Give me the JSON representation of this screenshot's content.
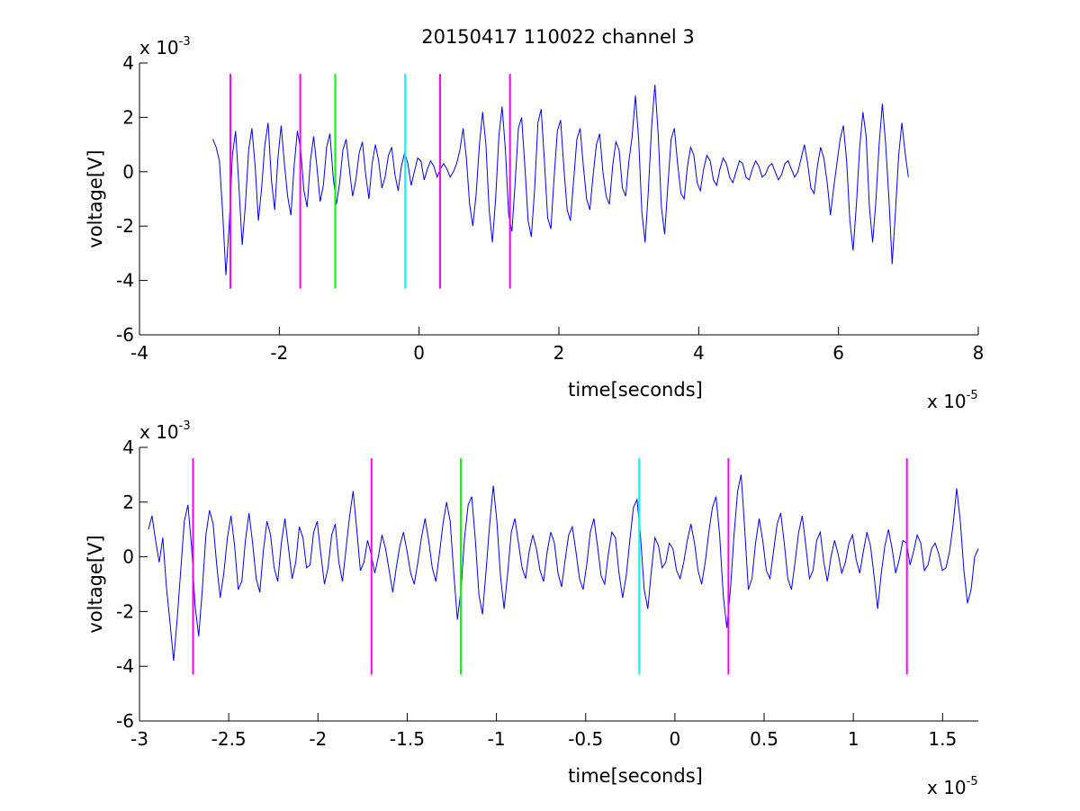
{
  "figure": {
    "title": "20150417 110022 channel 3"
  },
  "chart_data": [
    {
      "type": "line",
      "title": "20150417 110022 channel 3",
      "xlabel": "time[seconds]",
      "ylabel": "voltage[V]",
      "x_exponent_label": "x 10",
      "x_exponent_power": "-5",
      "y_exponent_label": "x 10",
      "y_exponent_power": "-3",
      "xlim": [
        -4,
        8
      ],
      "ylim": [
        -6,
        4
      ],
      "x_ticks": [
        -4,
        -2,
        0,
        2,
        4,
        6,
        8
      ],
      "x_tick_labels": [
        "-4",
        "-2",
        "0",
        "2",
        "4",
        "6",
        "8"
      ],
      "y_ticks": [
        -6,
        -4,
        -2,
        0,
        2,
        4
      ],
      "y_tick_labels": [
        "-6",
        "-4",
        "-2",
        "0",
        "2",
        "4"
      ],
      "grid": false,
      "signal": {
        "color": "#0000ff",
        "x_range": [
          -2.95,
          7.0
        ],
        "samples": [
          1.2,
          0.9,
          0.4,
          -1.5,
          -3.8,
          -2.0,
          0.6,
          1.5,
          -0.5,
          -2.7,
          -1.2,
          0.8,
          1.6,
          0.2,
          -1.8,
          -0.6,
          1.0,
          1.8,
          -0.3,
          -1.4,
          0.5,
          1.7,
          0.3,
          -0.9,
          -1.6,
          0.2,
          1.5,
          0.8,
          -0.7,
          -1.3,
          0.4,
          1.3,
          0.2,
          -1.1,
          -0.5,
          0.9,
          1.4,
          -0.2,
          -1.2,
          -0.4,
          0.8,
          1.2,
          0.1,
          -0.9,
          -0.3,
          0.7,
          1.1,
          -0.1,
          -1.0,
          0.3,
          1.0,
          0.4,
          -0.6,
          -0.2,
          0.6,
          0.9,
          -0.1,
          -0.7,
          0.2,
          0.7,
          0.3,
          -0.5,
          0.0,
          0.5,
          0.4,
          -0.3,
          0.1,
          0.4,
          0.2,
          -0.2,
          0.1,
          0.3,
          0.1,
          -0.2,
          0.0,
          0.3,
          0.8,
          1.6,
          0.5,
          -1.2,
          -2.0,
          -0.8,
          1.0,
          2.2,
          1.0,
          -1.4,
          -2.6,
          -1.0,
          1.3,
          2.4,
          0.8,
          -1.6,
          -2.2,
          -0.4,
          1.6,
          2.0,
          0.2,
          -1.8,
          -2.4,
          -0.6,
          1.8,
          2.3,
          0.4,
          -1.7,
          -2.1,
          -0.2,
          1.5,
          1.9,
          0.1,
          -1.4,
          -1.8,
          -0.3,
          1.2,
          1.6,
          0.2,
          -1.0,
          -1.4,
          -0.1,
          1.0,
          1.4,
          0.0,
          -0.9,
          -1.2,
          0.2,
          1.1,
          0.8,
          -0.6,
          -0.9,
          0.4,
          1.3,
          2.8,
          1.2,
          -1.5,
          -2.6,
          -0.7,
          1.7,
          3.2,
          1.4,
          -1.3,
          -2.3,
          -0.5,
          1.2,
          1.6,
          0.3,
          -0.8,
          -1.0,
          0.2,
          0.9,
          0.6,
          -0.4,
          -0.7,
          0.1,
          0.6,
          0.4,
          -0.3,
          -0.5,
          0.1,
          0.5,
          0.3,
          -0.2,
          -0.4,
          0.0,
          0.4,
          0.3,
          -0.2,
          -0.3,
          0.1,
          0.4,
          0.2,
          -0.2,
          -0.1,
          0.2,
          0.3,
          0.0,
          -0.3,
          -0.1,
          0.3,
          0.4,
          0.1,
          -0.2,
          0.0,
          0.5,
          1.0,
          0.3,
          -0.6,
          -0.8,
          0.2,
          0.9,
          0.5,
          -0.4,
          -1.6,
          -0.6,
          0.3,
          1.2,
          1.7,
          0.4,
          -1.8,
          -2.9,
          -1.2,
          0.9,
          2.2,
          1.3,
          -1.3,
          -2.6,
          -1.1,
          1.0,
          2.5,
          1.0,
          -1.0,
          -3.4,
          -1.5,
          0.6,
          1.8,
          0.7,
          -0.2
        ]
      },
      "event_markers": [
        {
          "x": -2.7,
          "color": "#ff00ff"
        },
        {
          "x": -1.7,
          "color": "#ff00ff"
        },
        {
          "x": -1.2,
          "color": "#00ff00"
        },
        {
          "x": -0.2,
          "color": "#00ffff"
        },
        {
          "x": 0.3,
          "color": "#ff00ff"
        },
        {
          "x": 1.3,
          "color": "#ff00ff"
        }
      ],
      "marker_y_range": [
        -4.3,
        3.6
      ]
    },
    {
      "type": "line",
      "xlabel": "time[seconds]",
      "ylabel": "voltage[V]",
      "x_exponent_label": "x 10",
      "x_exponent_power": "-5",
      "y_exponent_label": "x 10",
      "y_exponent_power": "-3",
      "xlim": [
        -3,
        1.7
      ],
      "ylim": [
        -6,
        4
      ],
      "x_ticks": [
        -3,
        -2.5,
        -2,
        -1.5,
        -1,
        -0.5,
        0,
        0.5,
        1,
        1.5
      ],
      "x_tick_labels": [
        "-3",
        "-2.5",
        "-2",
        "-1.5",
        "-1",
        "-0.5",
        "0",
        "0.5",
        "1",
        "1.5"
      ],
      "y_ticks": [
        -6,
        -4,
        -2,
        0,
        2,
        4
      ],
      "y_tick_labels": [
        "-6",
        "-4",
        "-2",
        "0",
        "2",
        "4"
      ],
      "grid": false,
      "signal": {
        "color": "#0000ff",
        "x_range": [
          -2.95,
          1.7
        ],
        "samples": [
          1.0,
          1.5,
          0.6,
          -0.2,
          0.7,
          -1.1,
          -2.4,
          -3.8,
          -2.3,
          -0.5,
          1.3,
          1.9,
          0.4,
          -1.8,
          -2.9,
          -1.2,
          0.8,
          1.7,
          1.2,
          -0.3,
          -1.5,
          -0.6,
          0.7,
          1.5,
          0.4,
          -1.2,
          -0.9,
          0.6,
          1.6,
          0.5,
          -0.8,
          -1.3,
          0.2,
          1.3,
          0.8,
          -0.4,
          -0.9,
          0.5,
          1.4,
          0.3,
          -0.8,
          -0.2,
          1.1,
          0.7,
          -0.4,
          -0.3,
          0.9,
          1.3,
          0.1,
          -1.0,
          -0.4,
          0.8,
          1.2,
          -0.2,
          -0.9,
          0.3,
          1.5,
          2.4,
          1.0,
          -0.5,
          -0.2,
          0.6,
          0.1,
          -0.6,
          0.0,
          0.8,
          0.3,
          -0.5,
          -1.3,
          -0.4,
          0.4,
          0.9,
          0.2,
          -0.6,
          -1.0,
          -0.2,
          0.7,
          1.4,
          0.6,
          -0.4,
          -0.9,
          0.1,
          1.2,
          2.0,
          1.3,
          -0.6,
          -2.3,
          -1.2,
          0.7,
          1.9,
          2.2,
          0.6,
          -1.4,
          -2.1,
          -0.5,
          1.2,
          2.6,
          1.3,
          -0.7,
          -1.9,
          -0.6,
          0.9,
          1.4,
          0.5,
          -0.4,
          -0.8,
          0.2,
          0.8,
          0.3,
          -0.5,
          -0.9,
          0.2,
          0.9,
          0.5,
          -0.6,
          -1.1,
          -0.1,
          0.8,
          1.1,
          0.2,
          -0.8,
          -1.2,
          -0.3,
          0.9,
          1.4,
          0.4,
          -0.7,
          -1.0,
          0.1,
          0.9,
          0.7,
          -0.6,
          -1.5,
          -0.7,
          0.6,
          1.8,
          2.1,
          0.7,
          -1.2,
          -1.9,
          -0.5,
          0.7,
          0.4,
          -0.4,
          -0.2,
          0.5,
          0.3,
          -0.5,
          -0.8,
          -0.2,
          0.6,
          1.2,
          0.5,
          -0.5,
          -1.0,
          -0.2,
          0.9,
          1.8,
          2.2,
          0.8,
          -1.4,
          -2.6,
          -1.2,
          0.8,
          2.4,
          3.0,
          1.0,
          -1.2,
          -0.8,
          0.5,
          1.4,
          0.6,
          -0.5,
          -0.8,
          0.2,
          1.2,
          1.6,
          0.5,
          -0.8,
          -1.2,
          -0.2,
          0.9,
          1.5,
          0.4,
          -0.8,
          -0.5,
          0.6,
          0.9,
          -0.2,
          -0.9,
          0.0,
          0.6,
          0.1,
          -0.6,
          -0.2,
          0.5,
          0.8,
          -0.1,
          -0.6,
          0.2,
          0.9,
          0.4,
          -0.7,
          -1.9,
          -0.6,
          0.4,
          1.0,
          0.3,
          -0.6,
          -0.1,
          0.6,
          0.5,
          -0.3,
          0.2,
          0.8,
          0.5,
          -0.5,
          -0.3,
          0.3,
          0.5,
          0.1,
          -0.5,
          -0.4,
          0.2,
          1.2,
          2.5,
          1.3,
          -0.5,
          -1.7,
          -1.2,
          0.0,
          0.3
        ]
      },
      "event_markers": [
        {
          "x": -2.7,
          "color": "#ff00ff"
        },
        {
          "x": -1.7,
          "color": "#ff00ff"
        },
        {
          "x": -1.2,
          "color": "#00ff00"
        },
        {
          "x": -0.2,
          "color": "#00ffff"
        },
        {
          "x": 0.3,
          "color": "#ff00ff"
        },
        {
          "x": 1.3,
          "color": "#ff00ff"
        }
      ],
      "marker_y_range": [
        -4.3,
        3.6
      ]
    }
  ]
}
